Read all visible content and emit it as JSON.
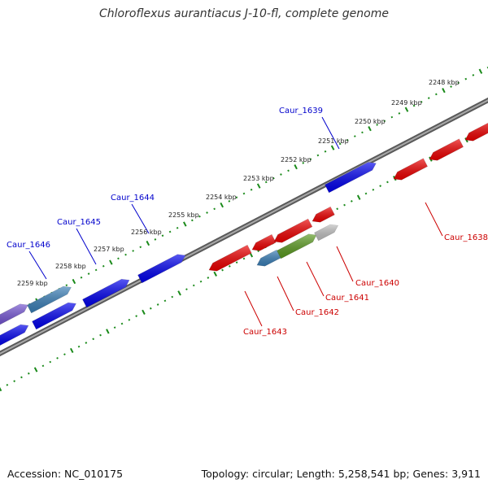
{
  "title": "Chloroflexus aurantiacus J-10-fl, complete genome",
  "footer": {
    "accession": "Accession: NC_010175",
    "summary": "Topology: circular; Length: 5,258,541 bp; Genes: 3,911"
  },
  "scale_labels": [
    "2248 kbp",
    "2249 kbp",
    "2250 kbp",
    "2251 kbp",
    "2252 kbp",
    "2253 kbp",
    "2254 kbp",
    "2255 kbp",
    "2256 kbp",
    "2257 kbp",
    "2258 kbp",
    "2259 kbp"
  ],
  "gene_labels": {
    "forward": [
      "Caur_1639",
      "Caur_1644",
      "Caur_1645",
      "Caur_1646"
    ],
    "reverse": [
      "Caur_1638",
      "Caur_1640",
      "Caur_1641",
      "Caur_1642",
      "Caur_1643"
    ]
  },
  "colors": {
    "forward_gene": "#0000ee",
    "forward_gene_alt": "#3a7fb8",
    "forward_gene_purple": "#7050d0",
    "reverse_gene": "#ee0000",
    "reverse_gene_blue": "#3a7fb8",
    "reverse_gene_green": "#5a9a20",
    "reverse_gene_gray": "#c0c0c0",
    "backbone": "#808080",
    "ticks": "#1a8a1a",
    "forward_label": "#0000cc",
    "reverse_label": "#cc0000"
  }
}
